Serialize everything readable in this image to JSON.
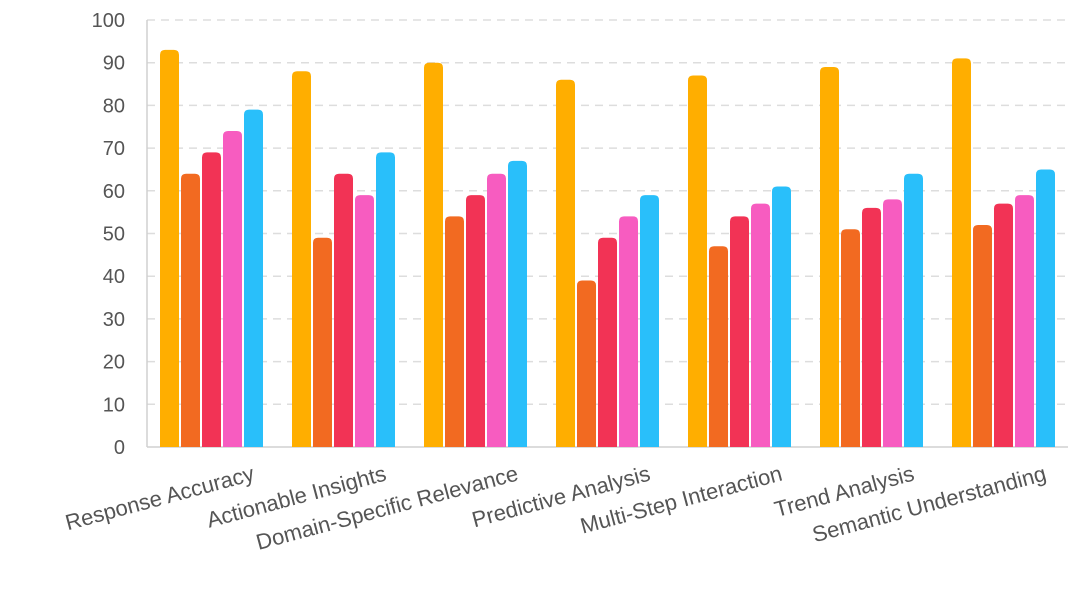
{
  "chart_data": {
    "type": "bar",
    "title": "",
    "xlabel": "",
    "ylabel": "",
    "ylim": [
      0,
      100
    ],
    "yticks": [
      0,
      10,
      20,
      30,
      40,
      50,
      60,
      70,
      80,
      90,
      100
    ],
    "grid": true,
    "legend": "none",
    "categories": [
      "Response Accuracy",
      "Actionable Insights",
      "Domain-Specific Relevance",
      "Predictive Analysis",
      "Multi-Step Interaction",
      "Trend Analysis",
      "Semantic Understanding"
    ],
    "series": [
      {
        "color": "#FFAE00",
        "values": [
          93,
          88,
          90,
          86,
          87,
          89,
          91
        ]
      },
      {
        "color": "#F26A21",
        "values": [
          64,
          49,
          54,
          39,
          47,
          51,
          52
        ]
      },
      {
        "color": "#F23355",
        "values": [
          69,
          64,
          59,
          49,
          54,
          56,
          57
        ]
      },
      {
        "color": "#F75CC0",
        "values": [
          74,
          59,
          64,
          54,
          57,
          58,
          59
        ]
      },
      {
        "color": "#29BFFA",
        "values": [
          79,
          69,
          67,
          59,
          61,
          64,
          65
        ]
      }
    ]
  }
}
